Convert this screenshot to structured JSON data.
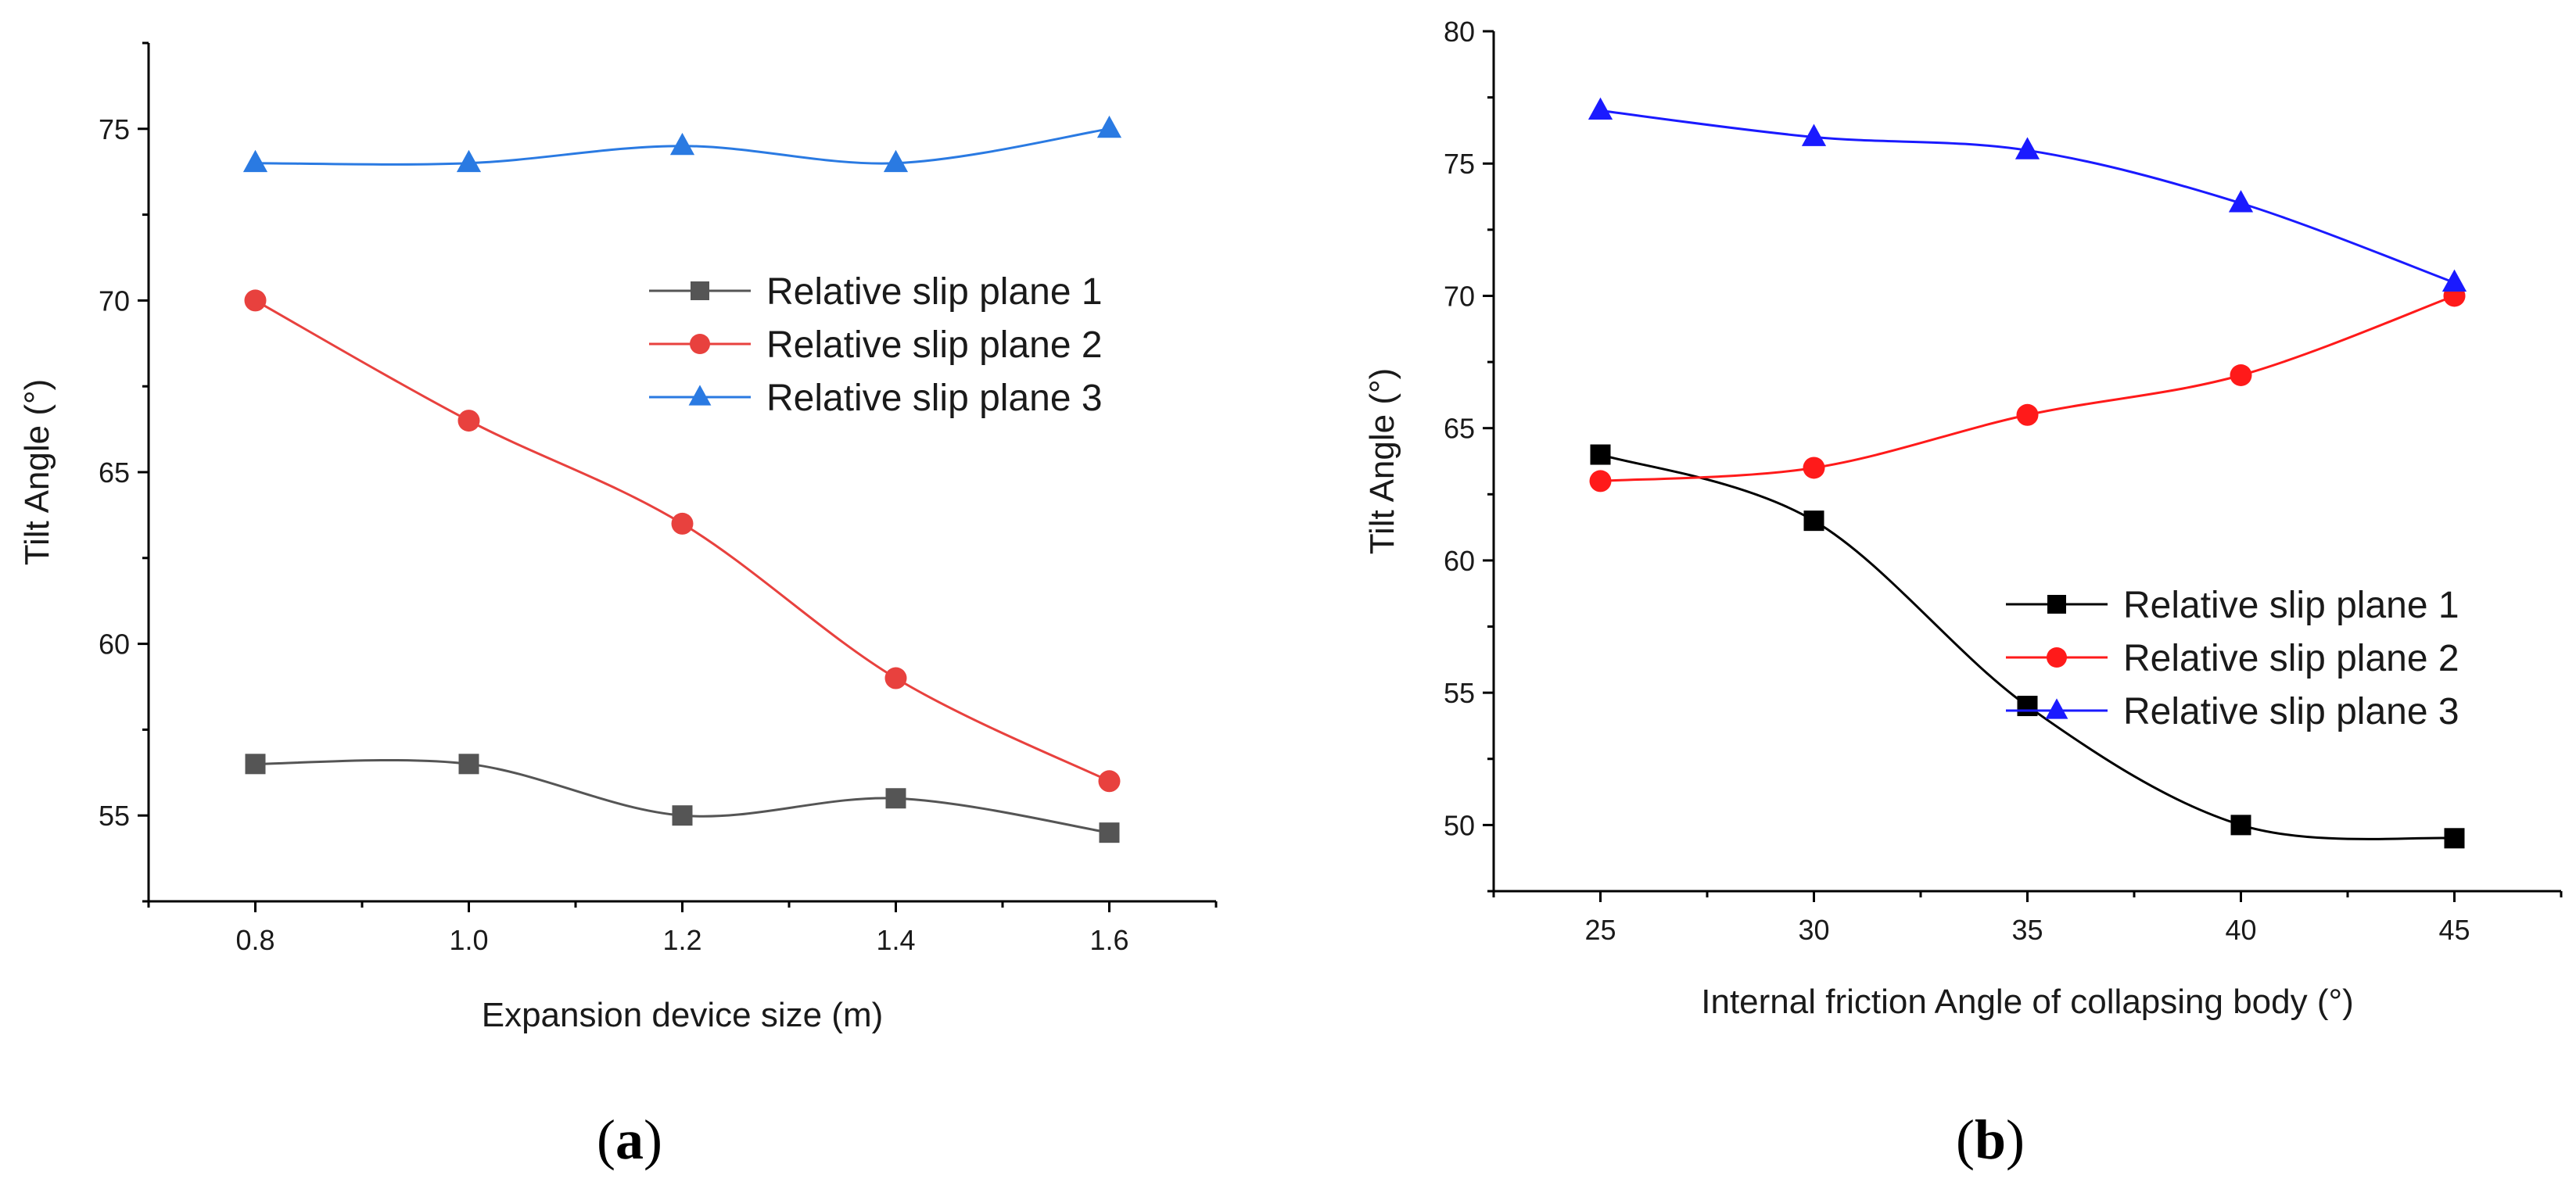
{
  "chart_data": [
    {
      "type": "line",
      "panel_label": {
        "open": "(",
        "letter": "a",
        "close": ")"
      },
      "title": "",
      "xlabel": "Expansion device size (m)",
      "ylabel": "Tilt Angle (°)",
      "x": [
        0.8,
        1.0,
        1.2,
        1.4,
        1.6
      ],
      "xticks": [
        "0.8",
        "1.0",
        "1.2",
        "1.4",
        "1.6"
      ],
      "xlim": [
        0.7,
        1.7
      ],
      "ylim": [
        52.5,
        77.5
      ],
      "yticks": [
        "55",
        "60",
        "65",
        "70",
        "75"
      ],
      "legend_position": "center-right",
      "series": [
        {
          "name": "Relative slip plane 1",
          "values": [
            56.5,
            56.5,
            55.0,
            55.5,
            54.5
          ],
          "color": "#555555",
          "marker": "square"
        },
        {
          "name": "Relative slip plane 2",
          "values": [
            70.0,
            66.5,
            63.5,
            59.0,
            56.0
          ],
          "color": "#e8413e",
          "marker": "circle"
        },
        {
          "name": "Relative slip plane 3",
          "values": [
            74.0,
            74.0,
            74.5,
            74.0,
            75.0
          ],
          "color": "#2a7ae2",
          "marker": "triangle"
        }
      ]
    },
    {
      "type": "line",
      "panel_label": {
        "open": "(",
        "letter": "b",
        "close": ")"
      },
      "title": "",
      "xlabel": "Internal friction Angle of collapsing body (°)",
      "ylabel": "Tilt Angle (°)",
      "x": [
        25,
        30,
        35,
        40,
        45
      ],
      "xticks": [
        "25",
        "30",
        "35",
        "40",
        "45"
      ],
      "xlim": [
        22.5,
        47.5
      ],
      "ylim": [
        47.5,
        80.0
      ],
      "yticks": [
        "50",
        "55",
        "60",
        "65",
        "70",
        "75",
        "80"
      ],
      "legend_position": "center-right",
      "series": [
        {
          "name": "Relative slip plane 1",
          "values": [
            64.0,
            61.5,
            54.5,
            50.0,
            49.5
          ],
          "color": "#000000",
          "marker": "square"
        },
        {
          "name": "Relative slip plane 2",
          "values": [
            63.0,
            63.5,
            65.5,
            67.0,
            70.0
          ],
          "color": "#ff1a1a",
          "marker": "circle"
        },
        {
          "name": "Relative slip plane 3",
          "values": [
            77.0,
            76.0,
            75.5,
            73.5,
            70.5
          ],
          "color": "#1a1aff",
          "marker": "triangle"
        }
      ]
    }
  ]
}
